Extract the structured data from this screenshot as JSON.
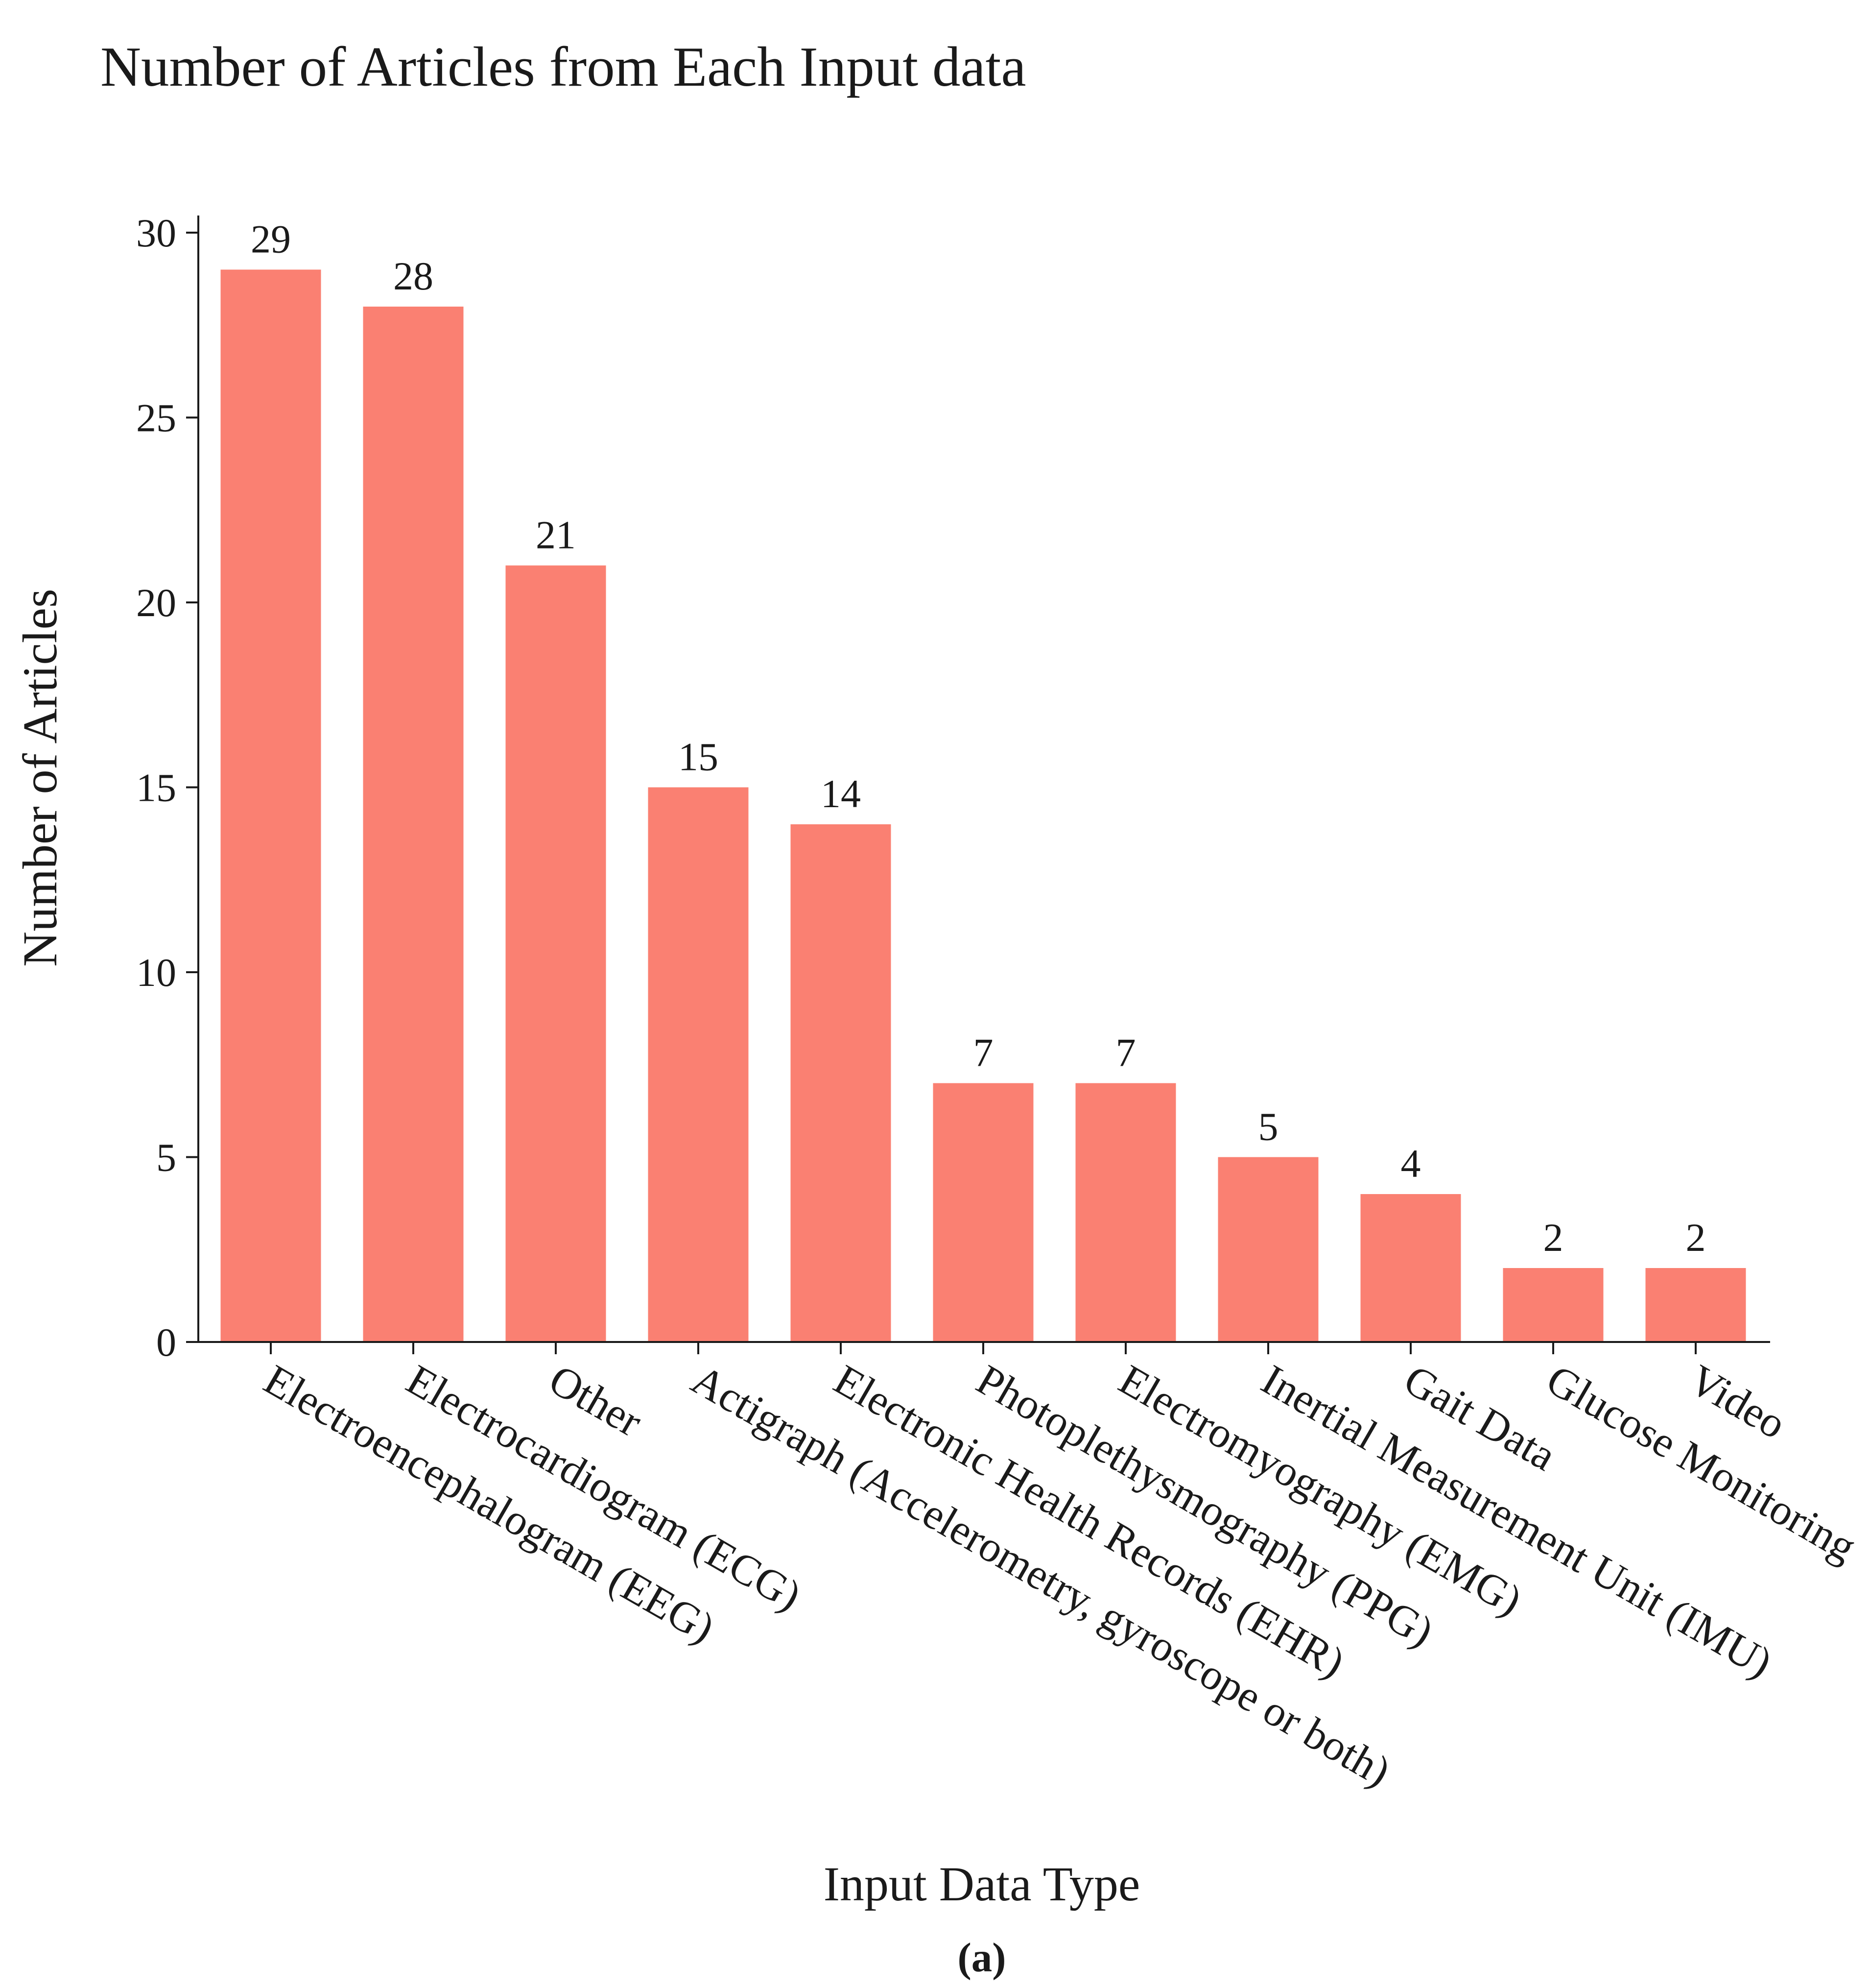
{
  "chart_data": {
    "type": "bar",
    "title": "Number of Articles from Each Input data",
    "xlabel": "Input Data Type",
    "ylabel": "Number of Articles",
    "caption": "(a)",
    "categories": [
      "Electroencephalogram (EEG)",
      "Electrocardiogram (ECG)",
      "Other",
      "Actigraph (Accelerometry, gyroscope or both)",
      "Electronic Health Records (EHR)",
      "Photoplethysmography (PPG)",
      "Electromyography (EMG)",
      "Inertial Measurement Unit (IMU)",
      "Gait Data",
      "Glucose Monitoring",
      "Video"
    ],
    "values": [
      29,
      28,
      21,
      15,
      14,
      7,
      7,
      5,
      4,
      2,
      2
    ],
    "data_labels": [
      "29",
      "28",
      "21",
      "15",
      "14",
      "7",
      "7",
      "5",
      "4",
      "2",
      "2"
    ],
    "ylim": [
      0,
      30
    ],
    "yticks": [
      0,
      5,
      10,
      15,
      20,
      25,
      30
    ],
    "ytick_labels": [
      "0",
      "5",
      "10",
      "15",
      "20",
      "25",
      "30"
    ],
    "grid": false,
    "legend": "none",
    "bar_color": "#fa8072",
    "text_color": "#1a1a1a"
  }
}
